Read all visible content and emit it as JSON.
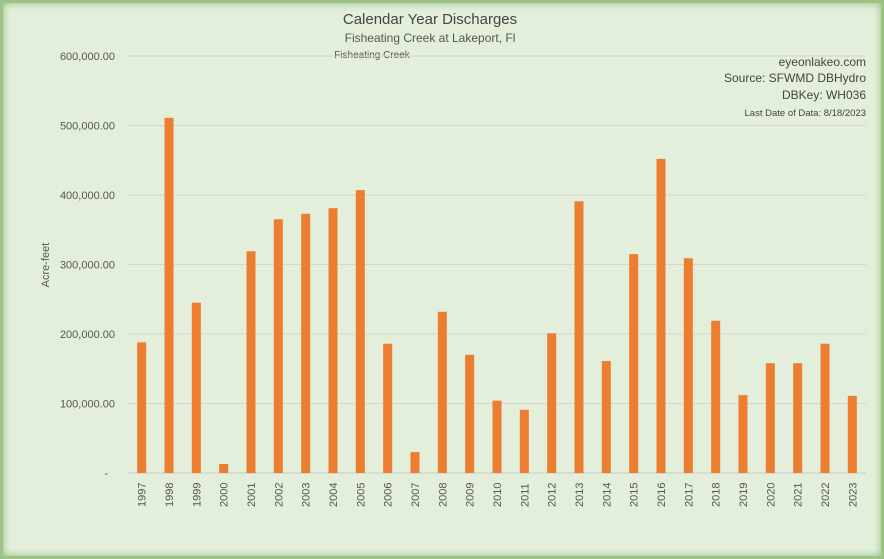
{
  "chart_data": {
    "type": "bar",
    "title": "Calendar Year Discharges",
    "subtitle": "Fisheating Creek at Lakeport, Fl",
    "series_label": "Fisheating Creek",
    "xlabel": "",
    "ylabel": "Acre-feet",
    "ylim": [
      0,
      600000
    ],
    "yticks": [
      "-",
      "100,000.00",
      "200,000.00",
      "300,000.00",
      "400,000.00",
      "500,000.00",
      "600,000.00"
    ],
    "grid": true,
    "bar_color": "#ed7d31",
    "categories": [
      "1997",
      "1998",
      "1999",
      "2000",
      "2001",
      "2002",
      "2003",
      "2004",
      "2005",
      "2006",
      "2007",
      "2008",
      "2009",
      "2010",
      "2011",
      "2012",
      "2013",
      "2014",
      "2015",
      "2016",
      "2017",
      "2018",
      "2019",
      "2020",
      "2021",
      "2022",
      "2023"
    ],
    "values": [
      188000,
      511000,
      245000,
      13000,
      319000,
      365000,
      373000,
      381000,
      407000,
      186000,
      30000,
      232000,
      170000,
      104000,
      91000,
      201000,
      391000,
      161000,
      315000,
      452000,
      309000,
      219000,
      112000,
      158000,
      158000,
      186000,
      111000
    ],
    "annotations": [
      "eyeonlakeo.com",
      "Source: SFWMD DBHydro",
      "DBKey: WH036",
      "Last Date of Data: 8/18/2023"
    ]
  }
}
